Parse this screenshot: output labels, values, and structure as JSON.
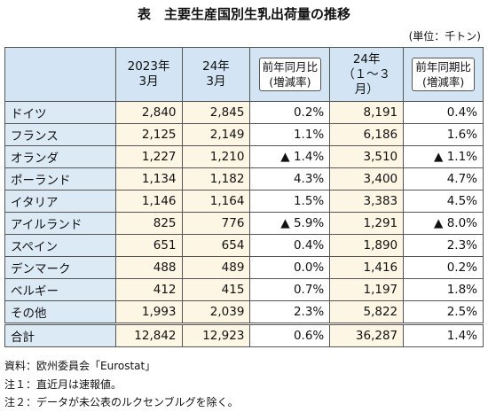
{
  "title": "表　主要生産国別生乳出荷量の推移",
  "unit": "(単位：千トン)",
  "table": {
    "header": [
      [
        "2023年",
        "3月"
      ],
      [
        "24年",
        "3月"
      ],
      [
        "前年同月比",
        "(増減率)"
      ],
      [
        "24年",
        "（１～３月）"
      ],
      [
        "前年同期比",
        "(増減率)"
      ]
    ],
    "rows": [
      [
        "ドイツ",
        "2,840",
        "2,845",
        "0.2%",
        "8,191",
        "0.4%"
      ],
      [
        "フランス",
        "2,125",
        "2,149",
        "1.1%",
        "6,186",
        "1.6%"
      ],
      [
        "オランダ",
        "1,227",
        "1,210",
        "▲ 1.4%",
        "3,510",
        "▲ 1.1%"
      ],
      [
        "ポーランド",
        "1,134",
        "1,182",
        "4.3%",
        "3,400",
        "4.7%"
      ],
      [
        "イタリア",
        "1,146",
        "1,164",
        "1.5%",
        "3,383",
        "4.5%"
      ],
      [
        "アイルランド",
        "825",
        "776",
        "▲ 5.9%",
        "1,291",
        "▲ 8.0%"
      ],
      [
        "スペイン",
        "651",
        "654",
        "0.4%",
        "1,890",
        "2.3%"
      ],
      [
        "デンマーク",
        "488",
        "489",
        "0.0%",
        "1,416",
        "0.2%"
      ],
      [
        "ベルギー",
        "412",
        "415",
        "0.7%",
        "1,197",
        "1.8%"
      ],
      [
        "その他",
        "1,993",
        "2,039",
        "2.3%",
        "5,822",
        "2.5%"
      ],
      [
        "合計",
        "12,842",
        "12,923",
        "0.6%",
        "36,287",
        "1.4%"
      ]
    ]
  },
  "notes": [
    "資料：欧州委員会「Eurostat」",
    "注１：直近月は速報値。",
    "注２：データが未公表のルクセンブルグを除く。"
  ]
}
